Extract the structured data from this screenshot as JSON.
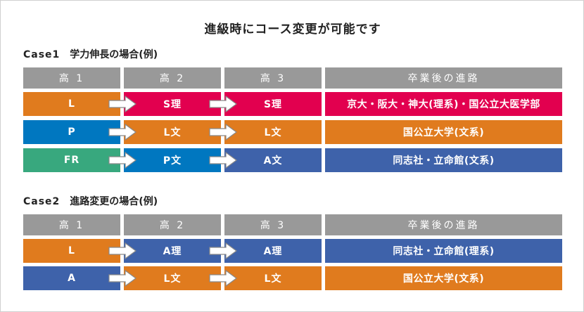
{
  "title": "進級時にコース変更が可能です",
  "colors": {
    "orange": "#e07b1e",
    "pink": "#e2004f",
    "blue_sky": "#0077c0",
    "blue_navy": "#3e62aa",
    "teal": "#38a87e",
    "header_gray": "#999999"
  },
  "case1": {
    "label_no": "Case1",
    "label_text": "学力伸長の場合(例)",
    "headers": [
      "高 1",
      "高 2",
      "高 3",
      "卒業後の進路"
    ],
    "rows": [
      {
        "c1": "L",
        "c2": "S理",
        "c3": "S理",
        "dest": "京大・阪大・神大(理系)・国公立大医学部"
      },
      {
        "c1": "P",
        "c2": "L文",
        "c3": "L文",
        "dest": "国公立大学(文系)"
      },
      {
        "c1": "FR",
        "c2": "P文",
        "c3": "A文",
        "dest": "同志社・立命館(文系)"
      }
    ]
  },
  "case2": {
    "label_no": "Case2",
    "label_text": "進路変更の場合(例)",
    "headers": [
      "高 1",
      "高 2",
      "高 3",
      "卒業後の進路"
    ],
    "rows": [
      {
        "c1": "L",
        "c2": "A理",
        "c3": "A理",
        "dest": "同志社・立命館(理系)"
      },
      {
        "c1": "A",
        "c2": "L文",
        "c3": "L文",
        "dest": "国公立大学(文系)"
      }
    ]
  }
}
